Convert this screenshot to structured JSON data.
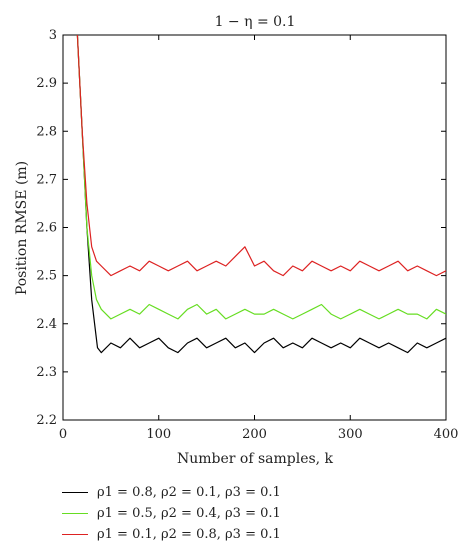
{
  "chart_data": {
    "type": "line",
    "title": "1 − η = 0.1",
    "xlabel": "Number of samples, k",
    "ylabel": "Position RMSE (m)",
    "xlim": [
      0,
      400
    ],
    "ylim": [
      2.2,
      3.0
    ],
    "xticks": [
      0,
      100,
      200,
      300,
      400
    ],
    "yticks": [
      2.2,
      2.3,
      2.4,
      2.5,
      2.6,
      2.7,
      2.8,
      2.9,
      3.0
    ],
    "xtick_labels": [
      "0",
      "100",
      "200",
      "300",
      "400"
    ],
    "ytick_labels": [
      "2.2",
      "2.3",
      "2.4",
      "2.5",
      "2.6",
      "2.7",
      "2.8",
      "2.9",
      "3"
    ],
    "grid": false,
    "legend_position": "below",
    "series": [
      {
        "name": "ρ1 = 0.8, ρ2 = 0.1, ρ3 = 0.1",
        "color": "#000000",
        "x": [
          15,
          20,
          25,
          30,
          33,
          36,
          40,
          50,
          60,
          70,
          80,
          90,
          100,
          110,
          120,
          130,
          140,
          150,
          160,
          170,
          180,
          190,
          200,
          210,
          220,
          230,
          240,
          250,
          260,
          270,
          280,
          290,
          300,
          310,
          320,
          330,
          340,
          350,
          360,
          370,
          380,
          390,
          400
        ],
        "values": [
          3.0,
          2.8,
          2.6,
          2.45,
          2.4,
          2.35,
          2.34,
          2.36,
          2.35,
          2.37,
          2.35,
          2.36,
          2.37,
          2.35,
          2.34,
          2.36,
          2.37,
          2.35,
          2.36,
          2.37,
          2.35,
          2.36,
          2.34,
          2.36,
          2.37,
          2.35,
          2.36,
          2.35,
          2.37,
          2.36,
          2.35,
          2.36,
          2.35,
          2.37,
          2.36,
          2.35,
          2.36,
          2.35,
          2.34,
          2.36,
          2.35,
          2.36,
          2.37
        ]
      },
      {
        "name": "ρ1 = 0.5, ρ2 = 0.4, ρ3 = 0.1",
        "color": "#66dd22",
        "x": [
          15,
          20,
          25,
          30,
          35,
          40,
          50,
          60,
          70,
          80,
          90,
          100,
          110,
          120,
          130,
          140,
          150,
          160,
          170,
          180,
          190,
          200,
          210,
          220,
          230,
          240,
          250,
          260,
          270,
          280,
          290,
          300,
          310,
          320,
          330,
          340,
          350,
          360,
          370,
          380,
          390,
          400
        ],
        "values": [
          3.0,
          2.8,
          2.6,
          2.5,
          2.45,
          2.43,
          2.41,
          2.42,
          2.43,
          2.42,
          2.44,
          2.43,
          2.42,
          2.41,
          2.43,
          2.44,
          2.42,
          2.43,
          2.41,
          2.42,
          2.43,
          2.42,
          2.42,
          2.43,
          2.42,
          2.41,
          2.42,
          2.43,
          2.44,
          2.42,
          2.41,
          2.42,
          2.43,
          2.42,
          2.41,
          2.42,
          2.43,
          2.42,
          2.42,
          2.41,
          2.43,
          2.42
        ]
      },
      {
        "name": "ρ1 = 0.1, ρ2 = 0.8, ρ3 = 0.1",
        "color": "#dd2222",
        "x": [
          15,
          20,
          25,
          30,
          35,
          40,
          50,
          60,
          70,
          80,
          90,
          100,
          110,
          120,
          130,
          140,
          150,
          160,
          170,
          180,
          190,
          200,
          210,
          220,
          230,
          240,
          250,
          260,
          270,
          280,
          290,
          300,
          310,
          320,
          330,
          340,
          350,
          360,
          370,
          380,
          390,
          400
        ],
        "values": [
          3.0,
          2.8,
          2.65,
          2.56,
          2.53,
          2.52,
          2.5,
          2.51,
          2.52,
          2.51,
          2.53,
          2.52,
          2.51,
          2.52,
          2.53,
          2.51,
          2.52,
          2.53,
          2.52,
          2.54,
          2.56,
          2.52,
          2.53,
          2.51,
          2.5,
          2.52,
          2.51,
          2.53,
          2.52,
          2.51,
          2.52,
          2.51,
          2.53,
          2.52,
          2.51,
          2.52,
          2.53,
          2.51,
          2.52,
          2.51,
          2.5,
          2.51
        ]
      }
    ]
  }
}
